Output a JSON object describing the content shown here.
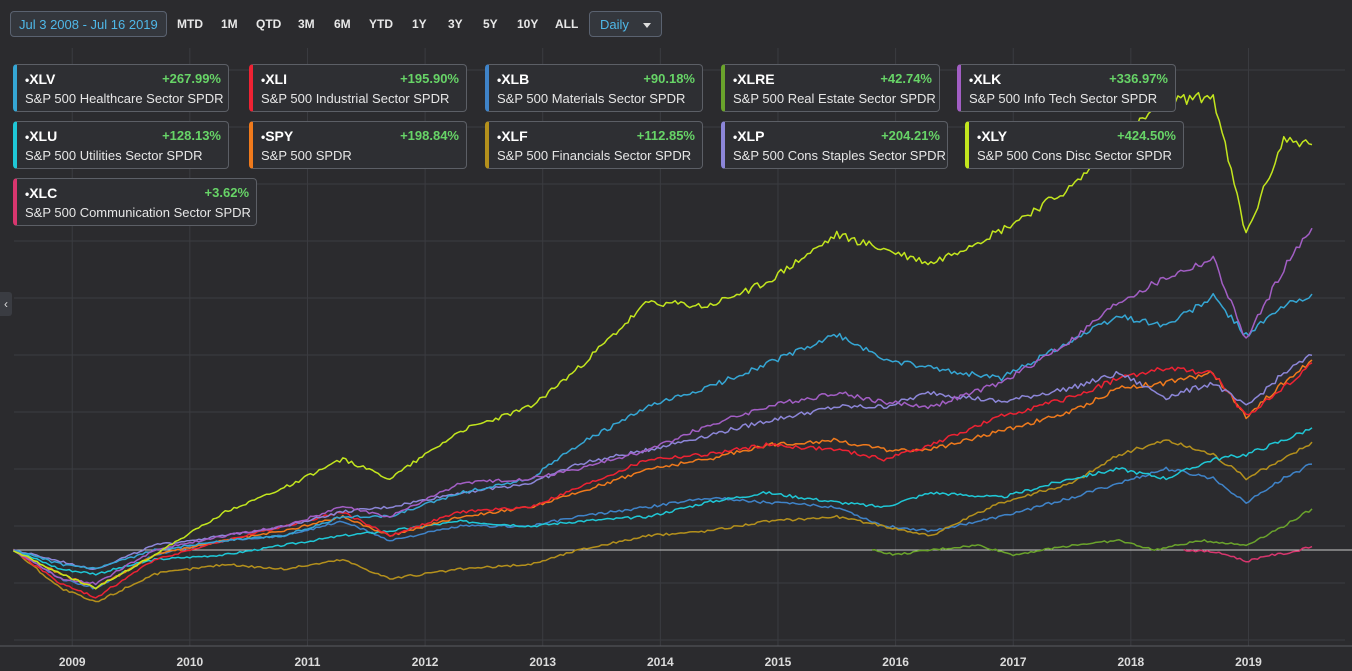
{
  "toolbar": {
    "date_range": "Jul 3 2008 - Jul 16 2019",
    "periods": [
      "MTD",
      "1M",
      "QTD",
      "3M",
      "6M",
      "YTD",
      "1Y",
      "3Y",
      "5Y",
      "10Y",
      "ALL"
    ],
    "interval": "Daily"
  },
  "legend_cards": [
    {
      "ticker": "XLV",
      "change": "+267.99%",
      "name": "S&P 500 Healthcare Sector SPDR",
      "color": "#35a6d4"
    },
    {
      "ticker": "XLI",
      "change": "+195.90%",
      "name": "S&P 500 Industrial Sector SPDR",
      "color": "#ee2233"
    },
    {
      "ticker": "XLB",
      "change": "+90.18%",
      "name": "S&P 500 Materials Sector SPDR",
      "color": "#3f83c8"
    },
    {
      "ticker": "XLRE",
      "change": "+42.74%",
      "name": "S&P 500 Real Estate Sector SPDR",
      "color": "#6aa32c"
    },
    {
      "ticker": "XLK",
      "change": "+336.97%",
      "name": "S&P 500 Info Tech Sector SPDR",
      "color": "#a25ec4"
    },
    {
      "ticker": "XLU",
      "change": "+128.13%",
      "name": "S&P 500 Utilities Sector SPDR",
      "color": "#1fc7d6"
    },
    {
      "ticker": "SPY",
      "change": "+198.84%",
      "name": "S&P 500 SPDR",
      "color": "#f07a1c"
    },
    {
      "ticker": "XLF",
      "change": "+112.85%",
      "name": "S&P 500 Financials Sector SPDR",
      "color": "#b4901c"
    },
    {
      "ticker": "XLP",
      "change": "+204.21%",
      "name": "S&P 500 Cons Staples Sector SPDR",
      "color": "#8c86d8"
    },
    {
      "ticker": "XLY",
      "change": "+424.50%",
      "name": "S&P 500 Cons Disc Sector SPDR",
      "color": "#c3e61e"
    },
    {
      "ticker": "XLC",
      "change": "+3.62%",
      "name": "S&P 500 Communication Sector SPDR",
      "color": "#d8366e"
    }
  ],
  "chart_data": {
    "type": "line",
    "x_tick_labels": [
      "2009",
      "2010",
      "2011",
      "2012",
      "2013",
      "2014",
      "2015",
      "2016",
      "2017",
      "2018",
      "2019"
    ],
    "xlim": [
      "2008-07-03",
      "2019-07-16"
    ],
    "y_unit": "percent change",
    "baseline": 0,
    "grid": true,
    "series": [
      {
        "name": "XLY",
        "color": "#c3e61e",
        "x": [
          2008.5,
          2008.9,
          2009.2,
          2009.7,
          2010.3,
          2010.8,
          2011.3,
          2011.7,
          2012.3,
          2012.9,
          2013.3,
          2013.9,
          2014.4,
          2014.9,
          2015.5,
          2015.9,
          2016.3,
          2016.9,
          2017.5,
          2017.9,
          2018.3,
          2018.7,
          2018.98,
          2019.3,
          2019.54
        ],
        "y": [
          0,
          -25,
          -40,
          -5,
          40,
          65,
          95,
          75,
          125,
          150,
          190,
          260,
          255,
          280,
          330,
          315,
          300,
          335,
          380,
          430,
          470,
          475,
          330,
          430,
          424.5
        ]
      },
      {
        "name": "XLK",
        "color": "#a25ec4",
        "x": [
          2008.5,
          2008.9,
          2009.2,
          2009.7,
          2010.3,
          2010.8,
          2011.3,
          2011.7,
          2012.3,
          2012.9,
          2013.3,
          2013.9,
          2014.4,
          2014.9,
          2015.5,
          2015.9,
          2016.3,
          2016.9,
          2017.5,
          2017.9,
          2018.3,
          2018.7,
          2018.98,
          2019.3,
          2019.54
        ],
        "y": [
          0,
          -30,
          -35,
          0,
          15,
          25,
          45,
          35,
          70,
          75,
          85,
          105,
          130,
          150,
          165,
          155,
          150,
          175,
          220,
          260,
          285,
          305,
          220,
          295,
          337
        ]
      },
      {
        "name": "XLV",
        "color": "#35a6d4",
        "x": [
          2008.5,
          2008.9,
          2009.2,
          2009.7,
          2010.3,
          2010.8,
          2011.3,
          2011.7,
          2012.3,
          2012.9,
          2013.3,
          2013.9,
          2014.4,
          2014.9,
          2015.5,
          2015.9,
          2016.3,
          2016.9,
          2017.5,
          2017.9,
          2018.3,
          2018.7,
          2018.98,
          2019.3,
          2019.54
        ],
        "y": [
          0,
          -15,
          -20,
          0,
          10,
          15,
          35,
          35,
          60,
          75,
          110,
          150,
          170,
          195,
          225,
          200,
          190,
          180,
          220,
          245,
          235,
          265,
          225,
          255,
          268
        ]
      },
      {
        "name": "XLP",
        "color": "#8c86d8",
        "x": [
          2008.5,
          2008.9,
          2009.2,
          2009.7,
          2010.3,
          2010.8,
          2011.3,
          2011.7,
          2012.3,
          2012.9,
          2013.3,
          2013.9,
          2014.4,
          2014.9,
          2015.5,
          2015.9,
          2016.3,
          2016.9,
          2017.5,
          2017.9,
          2018.3,
          2018.7,
          2018.98,
          2019.3,
          2019.54
        ],
        "y": [
          0,
          -12,
          -20,
          5,
          15,
          25,
          40,
          45,
          60,
          70,
          90,
          105,
          120,
          135,
          150,
          150,
          165,
          155,
          170,
          185,
          160,
          175,
          150,
          185,
          204
        ]
      },
      {
        "name": "XLI",
        "color": "#ee2233",
        "x": [
          2008.5,
          2008.9,
          2009.2,
          2009.7,
          2010.3,
          2010.8,
          2011.3,
          2011.7,
          2012.3,
          2012.9,
          2013.3,
          2013.9,
          2014.4,
          2014.9,
          2015.5,
          2015.9,
          2016.3,
          2016.9,
          2017.5,
          2017.9,
          2018.3,
          2018.7,
          2018.98,
          2019.3,
          2019.54
        ],
        "y": [
          0,
          -35,
          -50,
          -10,
          10,
          25,
          40,
          15,
          40,
          45,
          65,
          95,
          100,
          110,
          105,
          95,
          110,
          140,
          160,
          180,
          190,
          185,
          140,
          170,
          196
        ]
      },
      {
        "name": "SPY",
        "color": "#f07a1c",
        "x": [
          2008.5,
          2008.9,
          2009.2,
          2009.7,
          2010.3,
          2010.8,
          2011.3,
          2011.7,
          2012.3,
          2012.9,
          2013.3,
          2013.9,
          2014.4,
          2014.9,
          2015.5,
          2015.9,
          2016.3,
          2016.9,
          2017.5,
          2017.9,
          2018.3,
          2018.7,
          2018.98,
          2019.3,
          2019.54
        ],
        "y": [
          0,
          -25,
          -40,
          -5,
          10,
          20,
          35,
          15,
          35,
          45,
          60,
          85,
          95,
          110,
          115,
          105,
          105,
          125,
          145,
          170,
          175,
          185,
          140,
          175,
          199
        ]
      },
      {
        "name": "XLU",
        "color": "#1fc7d6",
        "x": [
          2008.5,
          2008.9,
          2009.2,
          2009.7,
          2010.3,
          2010.8,
          2011.3,
          2011.7,
          2012.3,
          2012.9,
          2013.3,
          2013.9,
          2014.4,
          2014.9,
          2015.5,
          2015.9,
          2016.3,
          2016.9,
          2017.5,
          2017.9,
          2018.3,
          2018.7,
          2018.98,
          2019.3,
          2019.54
        ],
        "y": [
          0,
          -20,
          -25,
          -10,
          -5,
          5,
          15,
          20,
          30,
          25,
          30,
          35,
          50,
          60,
          50,
          45,
          60,
          55,
          75,
          85,
          75,
          95,
          100,
          115,
          128
        ]
      },
      {
        "name": "XLF",
        "color": "#b4901c",
        "x": [
          2008.5,
          2008.9,
          2009.2,
          2009.7,
          2010.3,
          2010.8,
          2011.3,
          2011.7,
          2012.3,
          2012.9,
          2013.3,
          2013.9,
          2014.4,
          2014.9,
          2015.5,
          2015.9,
          2016.3,
          2016.9,
          2017.5,
          2017.9,
          2018.3,
          2018.7,
          2018.98,
          2019.3,
          2019.54
        ],
        "y": [
          0,
          -40,
          -55,
          -25,
          -15,
          -20,
          -10,
          -30,
          -20,
          -15,
          0,
          15,
          20,
          30,
          35,
          25,
          15,
          50,
          70,
          100,
          115,
          100,
          75,
          95,
          113
        ]
      },
      {
        "name": "XLB",
        "color": "#3f83c8",
        "x": [
          2008.5,
          2008.9,
          2009.2,
          2009.7,
          2010.3,
          2010.8,
          2011.3,
          2011.7,
          2012.3,
          2012.9,
          2013.3,
          2013.9,
          2014.4,
          2014.9,
          2015.5,
          2015.9,
          2016.3,
          2016.9,
          2017.5,
          2017.9,
          2018.3,
          2018.7,
          2018.98,
          2019.3,
          2019.54
        ],
        "y": [
          0,
          -30,
          -40,
          -5,
          10,
          15,
          30,
          10,
          25,
          25,
          35,
          45,
          55,
          50,
          45,
          25,
          20,
          35,
          55,
          70,
          85,
          75,
          50,
          75,
          90
        ]
      },
      {
        "name": "XLRE",
        "color": "#6aa32c",
        "x": [
          2015.8,
          2016.0,
          2016.3,
          2016.7,
          2017.0,
          2017.5,
          2017.9,
          2018.2,
          2018.6,
          2018.98,
          2019.3,
          2019.54
        ],
        "y": [
          0,
          -5,
          0,
          5,
          -5,
          5,
          10,
          0,
          10,
          5,
          25,
          43
        ]
      },
      {
        "name": "XLC",
        "color": "#d8366e",
        "x": [
          2018.45,
          2018.7,
          2018.85,
          2018.98,
          2019.15,
          2019.35,
          2019.54
        ],
        "y": [
          0,
          -2,
          -6,
          -12,
          -6,
          -3,
          3.6
        ]
      }
    ]
  }
}
